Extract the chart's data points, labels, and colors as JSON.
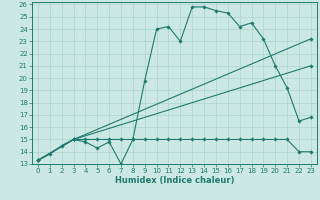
{
  "xlabel": "Humidex (Indice chaleur)",
  "bg_color": "#cce8e4",
  "grid_color": "#aad4cc",
  "line_color": "#1e7a6e",
  "xlim": [
    -0.5,
    23.5
  ],
  "ylim": [
    13,
    26.2
  ],
  "xticks": [
    0,
    1,
    2,
    3,
    4,
    5,
    6,
    7,
    8,
    9,
    10,
    11,
    12,
    13,
    14,
    15,
    16,
    17,
    18,
    19,
    20,
    21,
    22,
    23
  ],
  "yticks": [
    13,
    14,
    15,
    16,
    17,
    18,
    19,
    20,
    21,
    22,
    23,
    24,
    25,
    26
  ],
  "series": [
    {
      "x": [
        0,
        1,
        2,
        3,
        4,
        5,
        6,
        7,
        8,
        9,
        10,
        11,
        12,
        13,
        14,
        15,
        16,
        17,
        18,
        19,
        20,
        21,
        22,
        23
      ],
      "y": [
        13.3,
        13.8,
        14.5,
        15.0,
        14.8,
        14.3,
        14.8,
        13.0,
        15.0,
        19.8,
        24.0,
        24.2,
        23.0,
        25.8,
        25.8,
        25.5,
        25.3,
        24.2,
        24.5,
        23.2,
        21.0,
        19.2,
        16.5,
        16.8
      ]
    },
    {
      "x": [
        0,
        3,
        4,
        5,
        6,
        7,
        8,
        9,
        10,
        11,
        12,
        13,
        14,
        15,
        16,
        17,
        18,
        19,
        20,
        21,
        22,
        23
      ],
      "y": [
        13.3,
        15.0,
        15.0,
        15.0,
        15.0,
        15.0,
        15.0,
        15.0,
        15.0,
        15.0,
        15.0,
        15.0,
        15.0,
        15.0,
        15.0,
        15.0,
        15.0,
        15.0,
        15.0,
        15.0,
        14.0,
        14.0
      ]
    },
    {
      "x": [
        0,
        3,
        23
      ],
      "y": [
        13.3,
        15.0,
        21.0
      ]
    },
    {
      "x": [
        0,
        3,
        23
      ],
      "y": [
        13.3,
        15.0,
        23.2
      ]
    }
  ]
}
